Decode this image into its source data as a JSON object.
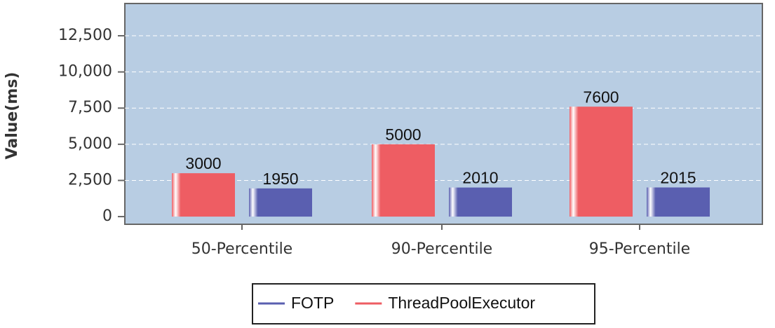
{
  "chart_data": {
    "type": "bar",
    "y_label": "Value(ms)",
    "categories": [
      "50-Percentile",
      "90-Percentile",
      "95-Percentile"
    ],
    "series": [
      {
        "name": "ThreadPoolExecutor",
        "color": "#ee5d63",
        "values": [
          3000,
          5000,
          7600
        ]
      },
      {
        "name": "FOTP",
        "color": "#5a5fb0",
        "values": [
          1950,
          2010,
          2015
        ]
      }
    ],
    "ylim": [
      -530,
      14730
    ],
    "yticks": [
      0,
      {
        "value": 2500,
        "label": "2,500"
      },
      {
        "value": 5000,
        "label": "5,000"
      },
      {
        "value": 7500,
        "label": "7,500"
      },
      {
        "value": 10000,
        "label": "10,000"
      },
      {
        "value": 12500,
        "label": "12,500"
      }
    ],
    "grid": true
  }
}
